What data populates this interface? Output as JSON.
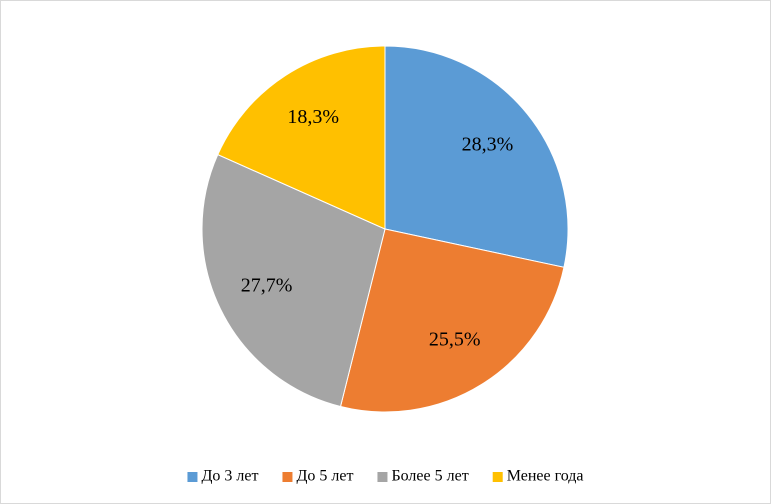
{
  "chart_data": {
    "type": "pie",
    "categories": [
      "До 3 лет",
      "До 5 лет",
      "Более 5 лет",
      "Менее года"
    ],
    "values": [
      28.3,
      25.5,
      27.7,
      18.3
    ],
    "value_labels": [
      "28,3%",
      "25,5%",
      "27,7%",
      "18,3%"
    ],
    "colors": [
      "#5b9bd5",
      "#ed7d31",
      "#a5a5a5",
      "#ffc000"
    ],
    "legend": "bottom"
  }
}
